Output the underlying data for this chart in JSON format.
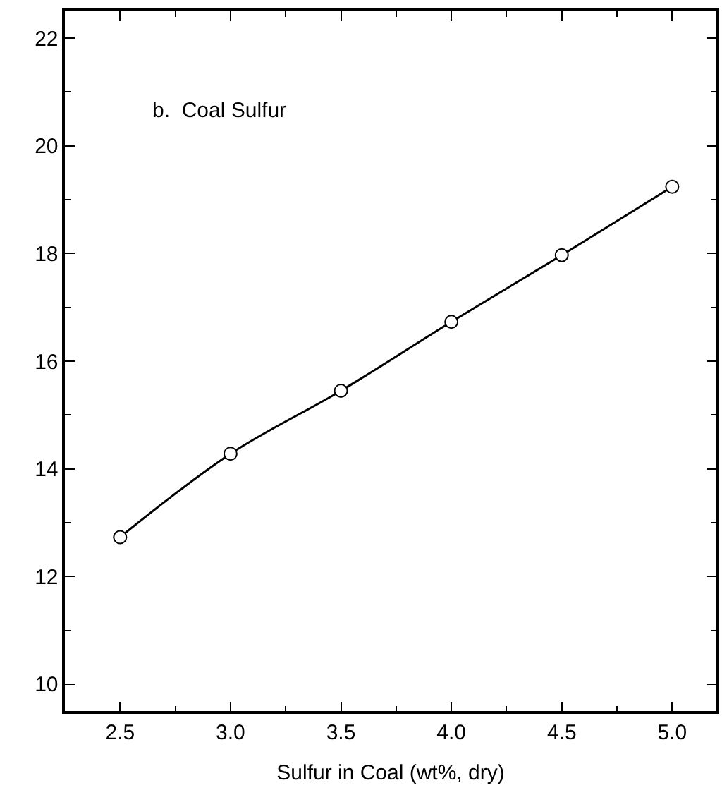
{
  "chart_data": {
    "type": "line",
    "xlabel": "Sulfur in Coal (wt%, dry)",
    "annotations": [
      "b.  Coal Sulfur"
    ],
    "x": [
      2.5,
      3.0,
      3.5,
      4.0,
      4.5,
      5.0
    ],
    "series": [
      {
        "color": "#000000",
        "values": [
          12.73,
          14.28,
          15.45,
          16.73,
          17.97,
          19.24
        ]
      }
    ],
    "marker": "circle",
    "line_style": "solid",
    "xlim": [
      2.25,
      5.2
    ],
    "xticks": [
      {
        "value": 2.5,
        "label": "2.5"
      },
      {
        "value": 3.0,
        "label": "3.0"
      },
      {
        "value": 3.5,
        "label": "3.5"
      },
      {
        "value": 4.0,
        "label": "4.0"
      },
      {
        "value": 4.5,
        "label": "4.5"
      },
      {
        "value": 5.0,
        "label": "5.0"
      }
    ],
    "ylim": [
      9.5,
      22.5
    ],
    "yticks": [
      10,
      12,
      14,
      16,
      18,
      20,
      22
    ]
  }
}
